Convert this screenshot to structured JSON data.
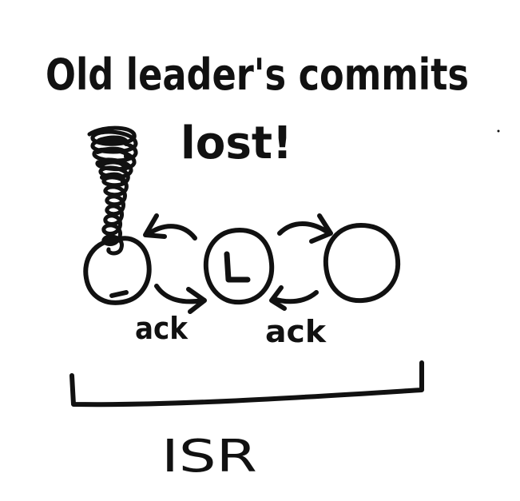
{
  "diagram": {
    "title_line1": "Old leader's commits",
    "title_line2": "lost!",
    "leader_label": "L",
    "ack_left": "ack",
    "ack_right": "ack",
    "group_label": "ISR",
    "colors": {
      "ink": "#111111",
      "background": "#ffffff"
    }
  }
}
